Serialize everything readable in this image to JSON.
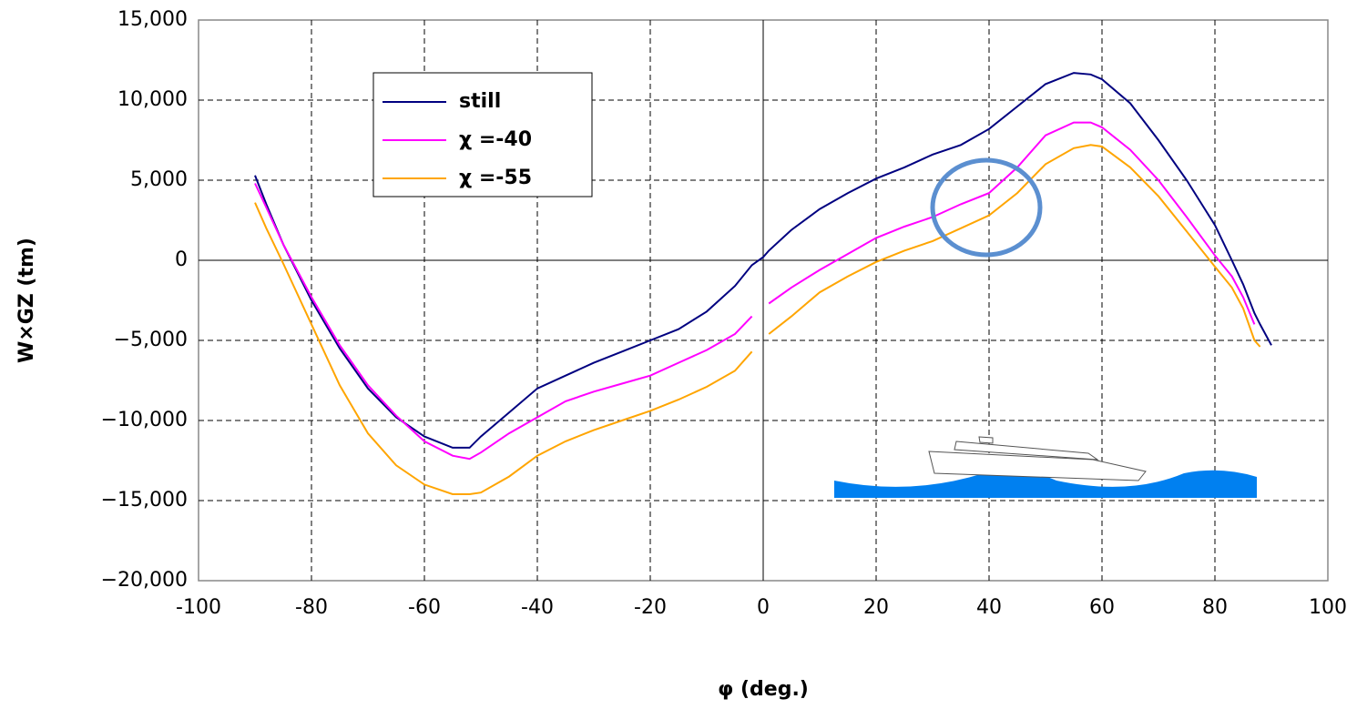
{
  "chart_data": {
    "type": "line",
    "x_label": "φ (deg.)",
    "y_label": "W×GZ (tm)",
    "x": [
      -90,
      -88,
      -85,
      -80,
      -75,
      -70,
      -65,
      -60,
      -55,
      -52,
      -50,
      -45,
      -40,
      -35,
      -30,
      -25,
      -20,
      -15,
      -10,
      -5,
      -2,
      0,
      1,
      5,
      10,
      15,
      20,
      25,
      30,
      35,
      40,
      45,
      50,
      55,
      58,
      60,
      65,
      70,
      75,
      80,
      83,
      85,
      87,
      88,
      90
    ],
    "series": [
      {
        "name": "still",
        "color": "#000080",
        "values": [
          5300,
          3500,
          1000,
          -2500,
          -5500,
          -8000,
          -9800,
          -11000,
          -11700,
          -11700,
          -11000,
          -9500,
          -8000,
          -7200,
          -6400,
          -5700,
          -5000,
          -4300,
          -3200,
          -1600,
          -300,
          200,
          600,
          1900,
          3200,
          4200,
          5100,
          5800,
          6600,
          7200,
          8200,
          9600,
          11000,
          11700,
          11600,
          11300,
          9800,
          7500,
          5000,
          2200,
          0,
          -1500,
          -3300,
          -4000,
          -5300
        ]
      },
      {
        "name": "χ =-40",
        "color": "#ff00ff",
        "values": [
          4800,
          3300,
          1000,
          -2300,
          -5300,
          -7800,
          -9700,
          -11300,
          -12200,
          -12400,
          -12000,
          -10800,
          -9800,
          -8800,
          -8200,
          -7700,
          -7200,
          -6400,
          -5600,
          -4600,
          -3500,
          null,
          -2700,
          -1700,
          -600,
          400,
          1400,
          2100,
          2700,
          3500,
          4200,
          5800,
          7800,
          8600,
          8600,
          8300,
          6900,
          5000,
          2700,
          300,
          -1000,
          -2300,
          -4000,
          null,
          null
        ]
      },
      {
        "name": "χ =-55",
        "color": "#ffa500",
        "values": [
          3600,
          2000,
          -200,
          -4000,
          -7800,
          -10800,
          -12800,
          -14000,
          -14600,
          -14600,
          -14500,
          -13500,
          -12200,
          -11300,
          -10600,
          -10000,
          -9400,
          -8700,
          -7900,
          -6900,
          -5700,
          null,
          -4600,
          -3500,
          -2000,
          -1000,
          -100,
          600,
          1200,
          2000,
          2800,
          4200,
          6000,
          7000,
          7200,
          7100,
          5800,
          4000,
          1800,
          -400,
          -1700,
          -3000,
          -5000,
          -5400,
          null
        ]
      }
    ],
    "xlim": [
      -100,
      100
    ],
    "xticks": [
      -100,
      -80,
      -60,
      -40,
      -20,
      0,
      20,
      40,
      60,
      80,
      100
    ],
    "ylim": [
      -20000,
      15000
    ],
    "yticks": [
      {
        "value": -20000,
        "label": "−20,000"
      },
      {
        "value": -15000,
        "label": "−15,000"
      },
      {
        "value": -10000,
        "label": "−10,000"
      },
      {
        "value": -5000,
        "label": "−5,000"
      },
      {
        "value": 0,
        "label": "0"
      },
      {
        "value": 5000,
        "label": "5,000"
      },
      {
        "value": 10000,
        "label": "10,000"
      },
      {
        "value": 15000,
        "label": "15,000"
      }
    ],
    "grid": true
  }
}
